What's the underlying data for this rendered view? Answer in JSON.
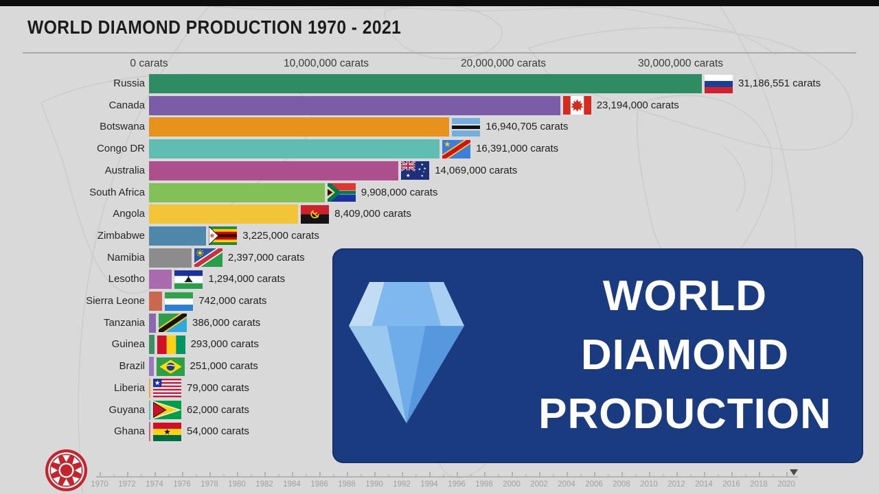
{
  "page": {
    "title": "WORLD DIAMOND PRODUCTION 1970 - 2021"
  },
  "axis": {
    "labels": [
      "0 carats",
      "10,000,000 carats",
      "20,000,000 carats",
      "30,000,000 carats"
    ]
  },
  "chart_data": {
    "type": "bar",
    "orientation": "horizontal",
    "title": "WORLD DIAMOND PRODUCTION 1970 - 2021",
    "unit": "carats",
    "xlabel": "carats",
    "xlim": [
      0,
      31500000
    ],
    "x_ticks": [
      0,
      10000000,
      20000000,
      30000000
    ],
    "x_tick_labels": [
      "0 carats",
      "10,000,000 carats",
      "20,000,000 carats",
      "30,000,000 carats"
    ],
    "grid": false,
    "categories": [
      "Russia",
      "Canada",
      "Botswana",
      "Congo DR",
      "Australia",
      "South Africa",
      "Angola",
      "Zimbabwe",
      "Namibia",
      "Lesotho",
      "Sierra Leone",
      "Tanzania",
      "Guinea",
      "Brazil",
      "Liberia",
      "Guyana",
      "Ghana"
    ],
    "values": [
      31186551,
      23194000,
      16940705,
      16391000,
      14069000,
      9908000,
      8409000,
      3225000,
      2397000,
      1294000,
      742000,
      386000,
      293000,
      251000,
      79000,
      62000,
      54000
    ],
    "value_labels": [
      "31,186,551 carats",
      "23,194,000 carats",
      "16,940,705 carats",
      "16,391,000 carats",
      "14,069,000 carats",
      "9,908,000 carats",
      "8,409,000 carats",
      "3,225,000 carats",
      "2,397,000 carats",
      "1,294,000 carats",
      "742,000 carats",
      "386,000 carats",
      "293,000 carats",
      "251,000 carats",
      "79,000 carats",
      "62,000 carats",
      "54,000 carats"
    ],
    "bar_colors": [
      "#2E8B62",
      "#7B5CA6",
      "#E8921E",
      "#5FBDB2",
      "#AE4F8D",
      "#83C057",
      "#F2C437",
      "#4E87A9",
      "#8C8C8C",
      "#A96BAB",
      "#C9684F",
      "#8A68AD",
      "#3C8F63",
      "#9878BE",
      "#E9A932",
      "#5FBDB2",
      "#CF5F82"
    ],
    "flags": [
      "flag-russia-icon",
      "flag-canada-icon",
      "flag-botswana-icon",
      "flag-congo-dr-icon",
      "flag-australia-icon",
      "flag-south-africa-icon",
      "flag-angola-icon",
      "flag-zimbabwe-icon",
      "flag-namibia-icon",
      "flag-lesotho-icon",
      "flag-sierra-leone-icon",
      "flag-tanzania-icon",
      "flag-guinea-icon",
      "flag-brazil-icon",
      "flag-liberia-icon",
      "flag-guyana-icon",
      "flag-ghana-icon"
    ]
  },
  "timeline": {
    "start_year": 1970,
    "end_year": 2021,
    "tick_years": [
      1970,
      1972,
      1974,
      1976,
      1978,
      1980,
      1982,
      1984,
      1986,
      1988,
      1990,
      1992,
      1994,
      1996,
      1998,
      2000,
      2002,
      2004,
      2006,
      2008,
      2010,
      2012,
      2014,
      2016,
      2018,
      2020
    ],
    "marker_year": 2021
  },
  "overlay": {
    "lines": [
      "WORLD",
      "DIAMOND",
      "PRODUCTION"
    ],
    "background": "#1B3B80",
    "icon": "diamond-icon"
  },
  "logo": {
    "name": "channel-logo",
    "color": "#C2262C"
  }
}
